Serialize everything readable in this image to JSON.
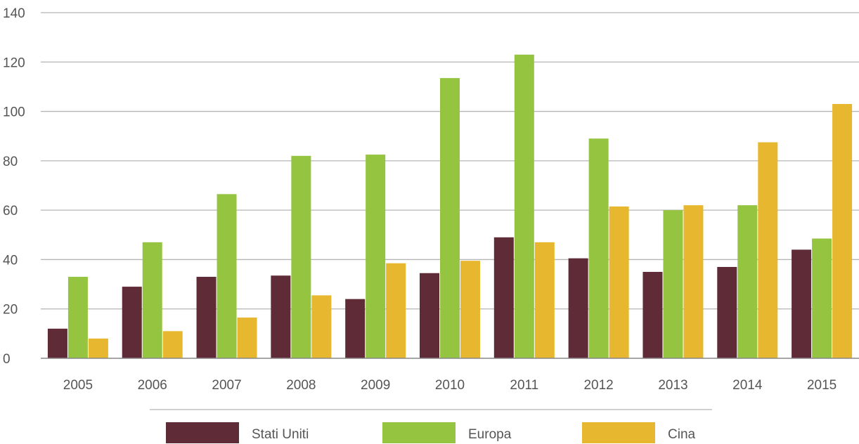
{
  "chart_data": {
    "type": "bar",
    "categories": [
      "2005",
      "2006",
      "2007",
      "2008",
      "2009",
      "2010",
      "2011",
      "2012",
      "2013",
      "2014",
      "2015"
    ],
    "series": [
      {
        "name": "Stati Uniti",
        "color": "#5e2b37",
        "values": [
          12,
          29,
          33,
          33.5,
          24,
          34.5,
          49,
          40.5,
          35,
          37,
          44
        ]
      },
      {
        "name": "Europa",
        "color": "#95c440",
        "values": [
          33,
          47,
          66.5,
          82,
          82.5,
          113.5,
          123,
          89,
          60,
          62,
          48.5
        ]
      },
      {
        "name": "Cina",
        "color": "#e7b82f",
        "values": [
          8,
          11,
          16.5,
          25.5,
          38.5,
          39.5,
          47,
          61.5,
          62,
          87.5,
          103
        ]
      }
    ],
    "yticks": [
      0,
      20,
      40,
      60,
      80,
      100,
      120,
      140
    ],
    "ylim": [
      0,
      140
    ],
    "grid": true,
    "legend_position": "bottom",
    "title": "",
    "xlabel": "",
    "ylabel": ""
  }
}
